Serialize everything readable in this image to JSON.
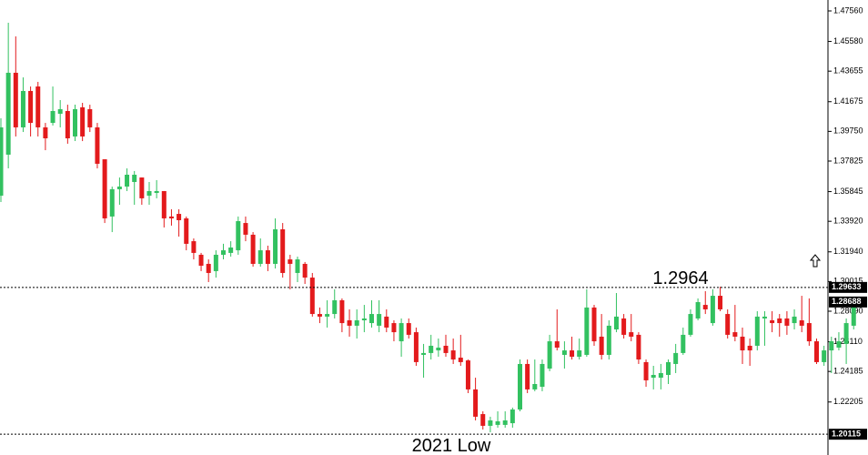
{
  "chart_data": {
    "type": "candlestick",
    "ylim": [
      1.18768,
      1.48268
    ],
    "yticks": [
      {
        "value": 1.4756,
        "label": "1.47560"
      },
      {
        "value": 1.4558,
        "label": "1.45580"
      },
      1.43655,
      1.41675,
      {
        "value": 1.3975,
        "label": "1.39750"
      },
      1.37825,
      1.35845,
      {
        "value": 1.3392,
        "label": "1.33920"
      },
      {
        "value": 1.3194,
        "label": "1.31940"
      },
      1.30015,
      {
        "value": 1.2809,
        "label": "1.28090"
      },
      {
        "value": 1.2611,
        "label": "1.26110"
      },
      1.24185,
      1.22205
    ],
    "up_color": "#32c160",
    "down_color": "#e31a1c",
    "open": [
      1.3558,
      1.3824,
      1.4355,
      1.4001,
      1.4237,
      1.4266,
      1.4001,
      1.403,
      1.4089,
      1.4107,
      1.3942,
      1.4131,
      1.4119,
      1.4001,
      1.3794,
      1.3423,
      1.36,
      1.3617,
      1.3647,
      1.3676,
      1.3558,
      1.3576,
      1.3588,
      1.3423,
      1.344,
      1.3411,
      1.3263,
      1.3175,
      1.3116,
      1.3069,
      1.3175,
      1.3187,
      1.3204,
      1.3381,
      1.3305,
      1.3116,
      1.3204,
      1.3116,
      1.334,
      1.3145,
      1.3057,
      1.3116,
      1.3027,
      1.2791,
      1.2774,
      1.2791,
      1.288,
      1.275,
      1.2715,
      1.275,
      1.2732,
      1.2715,
      1.2774,
      1.2732,
      1.2614,
      1.2732,
      1.2673,
      1.2526,
      1.2538,
      1.2555,
      1.2585,
      1.2555,
      1.2508,
      1.249,
      1.2302,
      1.2142,
      1.2066,
      1.2072,
      1.2072,
      1.2083,
      1.2172,
      1.2467,
      1.2302,
      1.2319,
      1.2437,
      1.2614,
      1.2526,
      1.2555,
      1.2514,
      1.2526,
      1.2833,
      1.2644,
      1.2526,
      1.2691,
      1.2762,
      1.2673,
      1.2656,
      1.2479,
      1.2378,
      1.2378,
      1.2396,
      1.2467,
      1.2538,
      1.2656,
      1.2762,
      1.285,
      1.2732,
      1.2909,
      1.2791,
      1.2673,
      1.2644,
      1.2585,
      1.2585,
      1.2762,
      1.275,
      1.2762,
      1.2762,
      1.2732,
      1.275,
      1.2732,
      1.2614,
      1.2479,
      1.2555,
      1.2573,
      1.2597,
      1.2715,
      1.285
    ],
    "high": [
      1.406,
      1.4679,
      1.4591,
      1.4325,
      1.4266,
      1.4296,
      1.403,
      1.4266,
      1.4178,
      1.4148,
      1.4148,
      1.416,
      1.4148,
      1.403,
      1.3794,
      1.3617,
      1.3676,
      1.3735,
      1.3718,
      1.3676,
      1.3647,
      1.3659,
      1.3588,
      1.347,
      1.347,
      1.3423,
      1.3281,
      1.3187,
      1.3145,
      1.3204,
      1.3246,
      1.3263,
      1.3423,
      1.3423,
      1.3322,
      1.3281,
      1.3234,
      1.3411,
      1.3381,
      1.3175,
      1.3163,
      1.3128,
      1.3057,
      1.2833,
      1.288,
      1.2951,
      1.2892,
      1.2821,
      1.2821,
      1.285,
      1.288,
      1.288,
      1.2821,
      1.275,
      1.2762,
      1.2762,
      1.2703,
      1.2597,
      1.2656,
      1.2632,
      1.2656,
      1.2632,
      1.2656,
      1.2496,
      1.2378,
      1.216,
      1.2125,
      1.216,
      1.216,
      1.2184,
      1.2496,
      1.2496,
      1.2496,
      1.2496,
      1.2656,
      1.2821,
      1.2614,
      1.2644,
      1.2632,
      1.2951,
      1.285,
      1.2791,
      1.275,
      1.2927,
      1.2791,
      1.2791,
      1.2673,
      1.2496,
      1.2455,
      1.2467,
      1.2496,
      1.2597,
      1.2703,
      1.2821,
      1.2892,
      1.2939,
      1.2951,
      1.2968,
      1.2821,
      1.285,
      1.2703,
      1.2632,
      1.2809,
      1.2809,
      1.2809,
      1.2791,
      1.2809,
      1.2821,
      1.2909,
      1.2892,
      1.2632,
      1.2585,
      1.2644,
      1.2673,
      1.2762,
      1.2892,
      1.2883
    ],
    "low": [
      1.3517,
      1.3735,
      1.3942,
      1.3971,
      1.3942,
      1.3942,
      1.3853,
      1.4013,
      1.4001,
      1.3895,
      1.3912,
      1.3912,
      1.3971,
      1.3735,
      1.3381,
      1.3322,
      1.3499,
      1.3588,
      1.3499,
      1.3499,
      1.3499,
      1.3541,
      1.3352,
      1.3364,
      1.3293,
      1.3204,
      1.3145,
      1.3069,
      1.2998,
      1.3027,
      1.3145,
      1.3163,
      1.3175,
      1.3263,
      1.3098,
      1.3098,
      1.3069,
      1.3086,
      1.3027,
      1.2951,
      1.2998,
      1.2986,
      1.2774,
      1.2732,
      1.2703,
      1.2762,
      1.2673,
      1.2644,
      1.2632,
      1.2673,
      1.2703,
      1.2673,
      1.2673,
      1.2614,
      1.2514,
      1.2632,
      1.2455,
      1.2378,
      1.2496,
      1.2514,
      1.2514,
      1.2467,
      1.2455,
      1.2278,
      1.2101,
      1.2042,
      1.2024,
      1.2054,
      1.2054,
      1.2054,
      1.216,
      1.2278,
      1.229,
      1.229,
      1.242,
      1.2555,
      1.2437,
      1.2496,
      1.2496,
      1.2514,
      1.2585,
      1.2496,
      1.2496,
      1.2673,
      1.2632,
      1.2614,
      1.2467,
      1.2319,
      1.2302,
      1.2302,
      1.2337,
      1.2408,
      1.2526,
      1.2644,
      1.275,
      1.2791,
      1.2715,
      1.2809,
      1.2632,
      1.2614,
      1.2467,
      1.2455,
      1.2555,
      1.2585,
      1.2673,
      1.2644,
      1.2656,
      1.2691,
      1.2673,
      1.2585,
      1.2467,
      1.2455,
      1.2408,
      1.2555,
      1.2467,
      1.2691,
      1.2833
    ],
    "close": [
      1.4001,
      1.4355,
      1.4001,
      1.4237,
      1.403,
      1.4001,
      1.393,
      1.4107,
      1.4119,
      1.393,
      1.4119,
      1.3942,
      1.4001,
      1.3765,
      1.3411,
      1.36,
      1.3617,
      1.3694,
      1.3694,
      1.3541,
      1.3588,
      1.3588,
      1.3411,
      1.3411,
      1.3399,
      1.3246,
      1.3187,
      1.3104,
      1.3057,
      1.3175,
      1.3204,
      1.3222,
      1.3393,
      1.3305,
      1.3116,
      1.3204,
      1.3116,
      1.334,
      1.3057,
      1.3116,
      1.3145,
      1.3027,
      1.2791,
      1.2774,
      1.2791,
      1.288,
      1.2732,
      1.2715,
      1.275,
      1.2762,
      1.2791,
      1.2791,
      1.2703,
      1.2673,
      1.2732,
      1.2656,
      1.2479,
      1.2538,
      1.2585,
      1.2573,
      1.2538,
      1.2496,
      1.2479,
      1.2302,
      1.2125,
      1.2066,
      1.2101,
      1.2095,
      1.2101,
      1.2172,
      1.2467,
      1.2302,
      1.2337,
      1.2467,
      1.2614,
      1.2573,
      1.2555,
      1.2514,
      1.2555,
      1.2833,
      1.2614,
      1.2526,
      1.2715,
      1.2774,
      1.2656,
      1.2644,
      1.2496,
      1.2361,
      1.2396,
      1.2408,
      1.2479,
      1.2538,
      1.2656,
      1.2791,
      1.2868,
      1.2821,
      1.2909,
      1.2821,
      1.2656,
      1.2644,
      1.2555,
      1.2555,
      1.2774,
      1.2774,
      1.2732,
      1.2732,
      1.2715,
      1.2774,
      1.2715,
      1.2614,
      1.2479,
      1.2555,
      1.2614,
      1.2614,
      1.2732,
      1.2868,
      1.288
    ],
    "hlines": [
      {
        "value": 1.29633,
        "label": "1.29633"
      },
      {
        "value": 1.20115,
        "label": "1.20115"
      }
    ],
    "last_price": {
      "value": 1.28688,
      "label": "1.28688"
    },
    "annotations": [
      "1.2964",
      "2021 Low"
    ]
  }
}
